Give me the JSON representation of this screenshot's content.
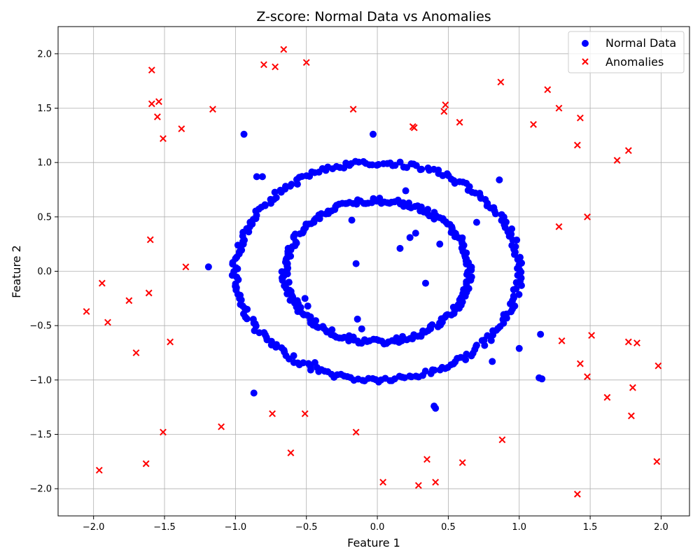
{
  "chart_data": {
    "type": "scatter",
    "title": "Z-score: Normal Data vs Anomalies",
    "xlabel": "Feature 1",
    "ylabel": "Feature 2",
    "xlim": [
      -2.25,
      2.2
    ],
    "ylim": [
      -2.25,
      2.25
    ],
    "x_ticks": [
      -2.0,
      -1.5,
      -1.0,
      -0.5,
      0.0,
      0.5,
      1.0,
      1.5,
      2.0
    ],
    "x_tick_labels": [
      "−2.0",
      "−1.5",
      "−1.0",
      "−0.5",
      "0.0",
      "0.5",
      "1.0",
      "1.5",
      "2.0"
    ],
    "y_ticks": [
      -2.0,
      -1.5,
      -1.0,
      -0.5,
      0.0,
      0.5,
      1.0,
      1.5,
      2.0
    ],
    "y_tick_labels": [
      "−2.0",
      "−1.5",
      "−1.0",
      "−0.5",
      "0.0",
      "0.5",
      "1.0",
      "1.5",
      "2.0"
    ],
    "grid": true,
    "legend_position": "top-right",
    "series": [
      {
        "name": "Normal Data",
        "marker": "circle",
        "color": "#0000ff",
        "rings": [
          {
            "radius": 1.0,
            "points": 260
          },
          {
            "radius": 0.65,
            "points": 220
          }
        ],
        "points": [
          [
            -0.94,
            1.26
          ],
          [
            -0.03,
            1.26
          ],
          [
            -0.85,
            0.87
          ],
          [
            -0.81,
            0.87
          ],
          [
            0.2,
            0.74
          ],
          [
            0.86,
            0.84
          ],
          [
            -0.18,
            0.47
          ],
          [
            0.7,
            0.45
          ],
          [
            0.27,
            0.35
          ],
          [
            0.23,
            0.31
          ],
          [
            0.44,
            0.25
          ],
          [
            0.16,
            0.21
          ],
          [
            -1.19,
            0.04
          ],
          [
            -0.15,
            0.07
          ],
          [
            0.34,
            -0.11
          ],
          [
            -0.51,
            -0.25
          ],
          [
            -0.49,
            -0.32
          ],
          [
            -0.14,
            -0.44
          ],
          [
            -0.11,
            -0.53
          ],
          [
            1.15,
            -0.58
          ],
          [
            1.0,
            -0.71
          ],
          [
            0.81,
            -0.83
          ],
          [
            -0.44,
            -0.84
          ],
          [
            1.14,
            -0.98
          ],
          [
            1.16,
            -0.99
          ],
          [
            -0.87,
            -1.12
          ],
          [
            0.4,
            -1.24
          ],
          [
            0.41,
            -1.26
          ]
        ]
      },
      {
        "name": "Anomalies",
        "marker": "x",
        "color": "#ff0000",
        "points": [
          [
            -0.66,
            2.04
          ],
          [
            -0.5,
            1.92
          ],
          [
            -0.8,
            1.9
          ],
          [
            -0.72,
            1.88
          ],
          [
            -1.59,
            1.85
          ],
          [
            0.87,
            1.74
          ],
          [
            1.2,
            1.67
          ],
          [
            -1.54,
            1.56
          ],
          [
            -1.59,
            1.54
          ],
          [
            0.48,
            1.53
          ],
          [
            1.28,
            1.5
          ],
          [
            -1.16,
            1.49
          ],
          [
            -0.17,
            1.49
          ],
          [
            0.47,
            1.47
          ],
          [
            -1.55,
            1.42
          ],
          [
            1.43,
            1.41
          ],
          [
            0.58,
            1.37
          ],
          [
            1.1,
            1.35
          ],
          [
            0.25,
            1.33
          ],
          [
            0.26,
            1.32
          ],
          [
            -1.38,
            1.31
          ],
          [
            -1.51,
            1.22
          ],
          [
            1.41,
            1.16
          ],
          [
            1.77,
            1.11
          ],
          [
            1.69,
            1.02
          ],
          [
            1.48,
            0.5
          ],
          [
            1.28,
            0.41
          ],
          [
            -1.6,
            0.29
          ],
          [
            -1.35,
            0.04
          ],
          [
            -1.94,
            -0.11
          ],
          [
            -1.61,
            -0.2
          ],
          [
            -1.75,
            -0.27
          ],
          [
            -2.05,
            -0.37
          ],
          [
            -1.9,
            -0.47
          ],
          [
            1.51,
            -0.59
          ],
          [
            -1.46,
            -0.65
          ],
          [
            1.3,
            -0.64
          ],
          [
            1.77,
            -0.65
          ],
          [
            1.83,
            -0.66
          ],
          [
            -1.7,
            -0.75
          ],
          [
            1.43,
            -0.85
          ],
          [
            1.98,
            -0.87
          ],
          [
            1.48,
            -0.97
          ],
          [
            1.8,
            -1.07
          ],
          [
            1.62,
            -1.16
          ],
          [
            -0.74,
            -1.31
          ],
          [
            -0.51,
            -1.31
          ],
          [
            1.79,
            -1.33
          ],
          [
            -1.1,
            -1.43
          ],
          [
            -1.51,
            -1.48
          ],
          [
            -0.15,
            -1.48
          ],
          [
            0.88,
            -1.55
          ],
          [
            -0.61,
            -1.67
          ],
          [
            0.35,
            -1.73
          ],
          [
            1.97,
            -1.75
          ],
          [
            -1.63,
            -1.77
          ],
          [
            0.6,
            -1.76
          ],
          [
            -1.96,
            -1.83
          ],
          [
            0.04,
            -1.94
          ],
          [
            0.41,
            -1.94
          ],
          [
            0.29,
            -1.97
          ],
          [
            1.41,
            -2.05
          ]
        ]
      }
    ]
  }
}
